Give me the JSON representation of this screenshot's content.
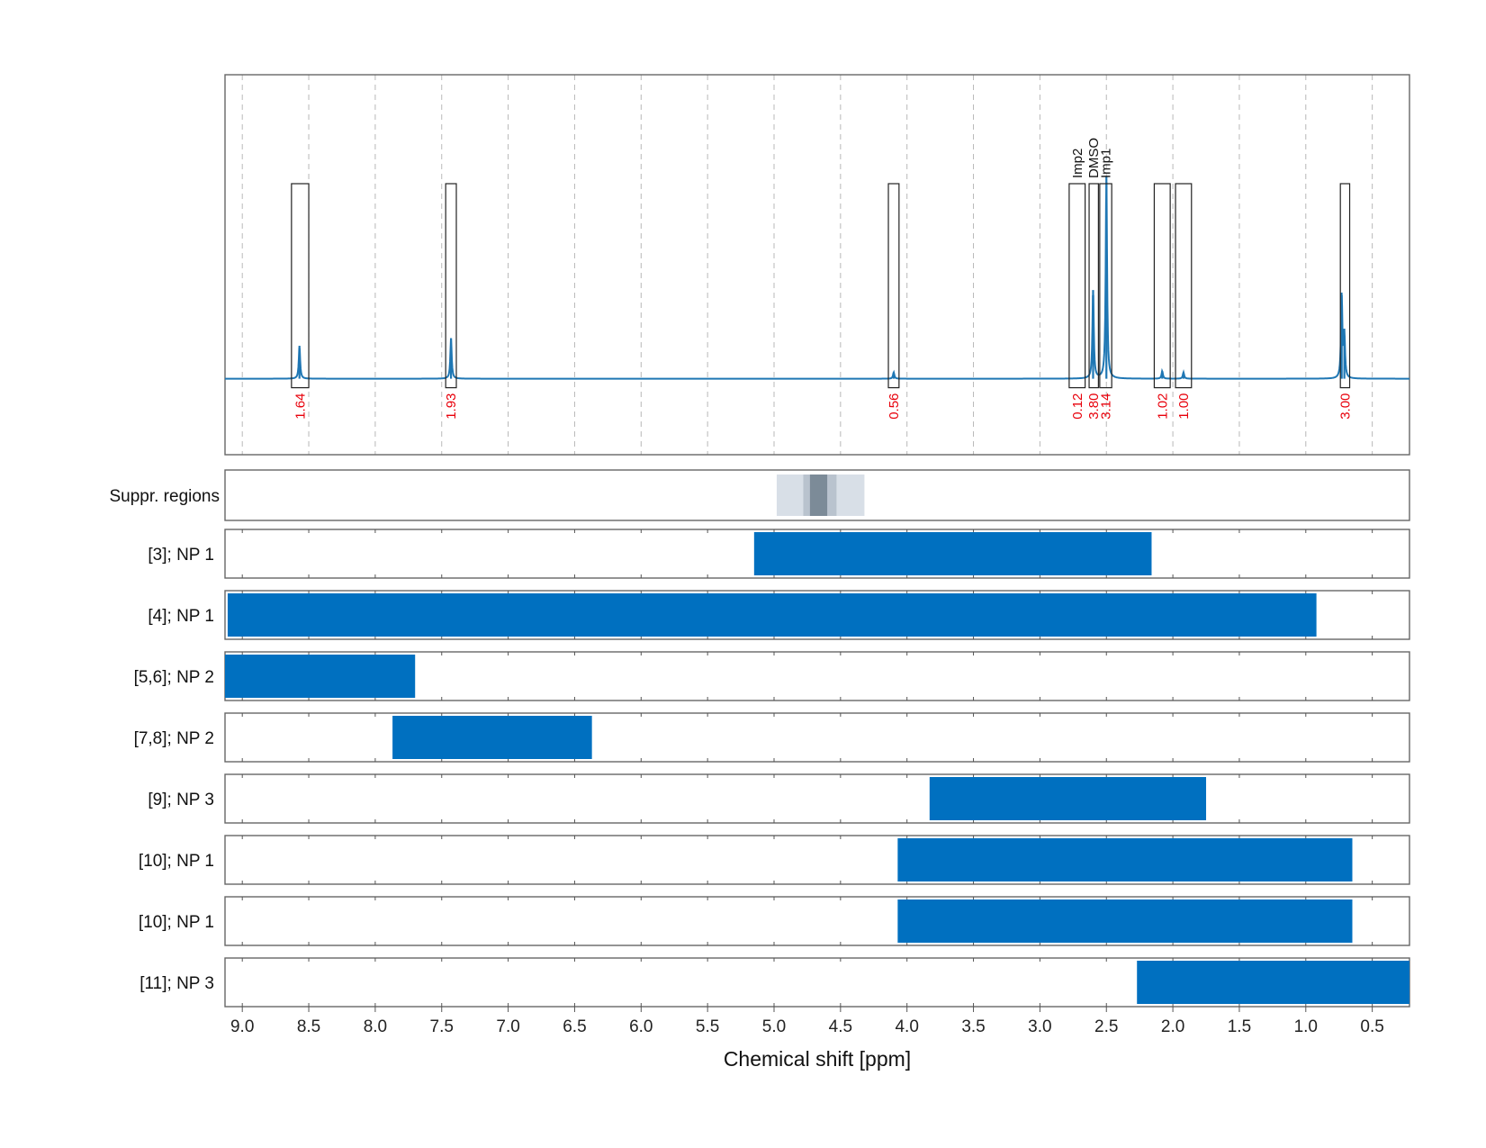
{
  "chart_data": {
    "type": "nmr_spectrum_with_range_bars",
    "xlabel": "Chemical shift [ppm]",
    "x_reversed": true,
    "xlim": [
      9.13,
      0.22
    ],
    "x_ticks": [
      "9.0",
      "8.5",
      "8.0",
      "7.5",
      "7.0",
      "6.5",
      "6.0",
      "5.5",
      "5.0",
      "4.5",
      "4.0",
      "3.5",
      "3.0",
      "2.5",
      "2.0",
      "1.5",
      "1.0",
      "0.5"
    ],
    "spectrum": {
      "baseline": 0,
      "ylim": [
        -0.3,
        1.2
      ],
      "color": "#1f77b4",
      "peaks": [
        {
          "shift": 8.57,
          "height": 0.13
        },
        {
          "shift": 7.43,
          "height": 0.16
        },
        {
          "shift": 4.1,
          "height": 0.025
        },
        {
          "shift": 2.6,
          "height": 0.35
        },
        {
          "shift": 2.5,
          "height": 0.8
        },
        {
          "shift": 2.08,
          "height": 0.03
        },
        {
          "shift": 1.92,
          "height": 0.025
        },
        {
          "shift": 0.73,
          "height": 0.33
        },
        {
          "shift": 0.71,
          "height": 0.17
        }
      ]
    },
    "regions": [
      {
        "xmin": 8.5,
        "xmax": 8.63,
        "integral": "1.64",
        "label": ""
      },
      {
        "xmin": 7.39,
        "xmax": 7.47,
        "integral": "1.93",
        "label": ""
      },
      {
        "xmin": 4.06,
        "xmax": 4.14,
        "integral": "0.56",
        "label": ""
      },
      {
        "xmin": 2.66,
        "xmax": 2.78,
        "integral": "0.12",
        "label": "Imp2"
      },
      {
        "xmin": 2.56,
        "xmax": 2.63,
        "integral": "3.80",
        "label": "DMSO"
      },
      {
        "xmin": 2.46,
        "xmax": 2.55,
        "integral": "3.14",
        "label": "Imp1"
      },
      {
        "xmin": 2.02,
        "xmax": 2.14,
        "integral": "1.02",
        "label": ""
      },
      {
        "xmin": 1.86,
        "xmax": 1.98,
        "integral": "1.00",
        "label": ""
      },
      {
        "xmin": 0.67,
        "xmax": 0.74,
        "integral": "3.00",
        "label": ""
      }
    ],
    "suppression": {
      "label": "Suppr. regions",
      "bands": [
        {
          "xmin": 4.32,
          "xmax": 4.98,
          "color": "#d8dfe7"
        },
        {
          "xmin": 4.53,
          "xmax": 4.78,
          "color": "#b9c3ce"
        },
        {
          "xmin": 4.6,
          "xmax": 4.73,
          "color": "#7c8b98"
        }
      ]
    },
    "range_rows": [
      {
        "label": "[3]; NP 1",
        "xmin": 2.16,
        "xmax": 5.15,
        "color": "#0070c0"
      },
      {
        "label": "[4]; NP 1",
        "xmin": 0.92,
        "xmax": 9.11,
        "color": "#0070c0"
      },
      {
        "label": "[5,6]; NP 2",
        "xmin": 7.7,
        "xmax": 9.13,
        "color": "#0070c0"
      },
      {
        "label": "[7,8]; NP 2",
        "xmin": 6.37,
        "xmax": 7.87,
        "color": "#0070c0"
      },
      {
        "label": "[9]; NP 3",
        "xmin": 1.75,
        "xmax": 3.83,
        "color": "#0070c0"
      },
      {
        "label": "[10]; NP 1",
        "xmin": 0.65,
        "xmax": 4.07,
        "color": "#0070c0"
      },
      {
        "label": "[10]; NP 1",
        "xmin": 0.65,
        "xmax": 4.07,
        "color": "#0070c0"
      },
      {
        "label": "[11]; NP 3",
        "xmin": 0.22,
        "xmax": 2.27,
        "color": "#0070c0"
      }
    ]
  }
}
